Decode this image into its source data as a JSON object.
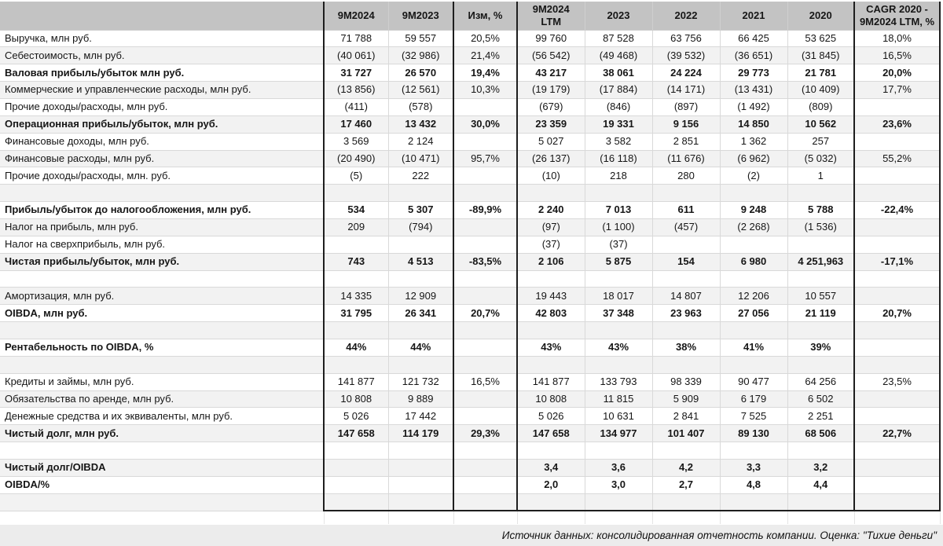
{
  "table": {
    "columns": [
      "",
      "9M2024",
      "9M2023",
      "Изм, %",
      "9M2024 LTM",
      "2023",
      "2022",
      "2021",
      "2020",
      "CAGR 2020 - 9M2024 LTM, %"
    ],
    "rows": [
      {
        "label": "Выручка, млн руб.",
        "bold": false,
        "cells": [
          "71 788",
          "59 557",
          "20,5%",
          "99 760",
          "87 528",
          "63 756",
          "66 425",
          "53 625",
          "18,0%"
        ]
      },
      {
        "label": "Себестоимость, млн руб.",
        "bold": false,
        "cells": [
          "(40 061)",
          "(32 986)",
          "21,4%",
          "(56 542)",
          "(49 468)",
          "(39 532)",
          "(36 651)",
          "(31 845)",
          "16,5%"
        ]
      },
      {
        "label": "Валовая прибыль/убыток млн руб.",
        "bold": true,
        "cells": [
          "31 727",
          "26 570",
          "19,4%",
          "43 217",
          "38 061",
          "24 224",
          "29 773",
          "21 781",
          "20,0%"
        ]
      },
      {
        "label": "Коммерческие и управленческие расходы, млн руб.",
        "bold": false,
        "cells": [
          "(13 856)",
          "(12 561)",
          "10,3%",
          "(19 179)",
          "(17 884)",
          "(14 171)",
          "(13 431)",
          "(10 409)",
          "17,7%"
        ]
      },
      {
        "label": "Прочие доходы/расходы, млн руб.",
        "bold": false,
        "cells": [
          "(411)",
          "(578)",
          "",
          "(679)",
          "(846)",
          "(897)",
          "(1 492)",
          "(809)",
          ""
        ]
      },
      {
        "label": "Операционная прибыль/убыток, млн руб.",
        "bold": true,
        "cells": [
          "17 460",
          "13 432",
          "30,0%",
          "23 359",
          "19 331",
          "9 156",
          "14 850",
          "10 562",
          "23,6%"
        ]
      },
      {
        "label": "Финансовые доходы, млн руб.",
        "bold": false,
        "cells": [
          "3 569",
          "2 124",
          "",
          "5 027",
          "3 582",
          "2 851",
          "1 362",
          "257",
          ""
        ]
      },
      {
        "label": "Финансовые расходы, млн руб.",
        "bold": false,
        "cells": [
          "(20 490)",
          "(10 471)",
          "95,7%",
          "(26 137)",
          "(16 118)",
          "(11 676)",
          "(6 962)",
          "(5 032)",
          "55,2%"
        ]
      },
      {
        "label": "Прочие доходы/расходы, млн. руб.",
        "bold": false,
        "cells": [
          "(5)",
          "222",
          "",
          "(10)",
          "218",
          "280",
          "(2)",
          "1",
          ""
        ]
      },
      {
        "label": "",
        "bold": false,
        "cells": [
          "",
          "",
          "",
          "",
          "",
          "",
          "",
          "",
          ""
        ]
      },
      {
        "label": "Прибыль/убыток до налогообложения, млн руб.",
        "bold": true,
        "cells": [
          "534",
          "5 307",
          "-89,9%",
          "2 240",
          "7 013",
          "611",
          "9 248",
          "5 788",
          "-22,4%"
        ]
      },
      {
        "label": "Налог на прибыль, млн руб.",
        "bold": false,
        "cells": [
          "209",
          "(794)",
          "",
          "(97)",
          "(1 100)",
          "(457)",
          "(2 268)",
          "(1 536)",
          ""
        ]
      },
      {
        "label": "Налог на сверхприбыль, млн руб.",
        "bold": false,
        "cells": [
          "",
          "",
          "",
          "(37)",
          "(37)",
          "",
          "",
          "",
          ""
        ]
      },
      {
        "label": "Чистая прибыль/убыток, млн руб.",
        "bold": true,
        "cells": [
          "743",
          "4 513",
          "-83,5%",
          "2 106",
          "5 875",
          "154",
          "6 980",
          "4 251,963",
          "-17,1%"
        ]
      },
      {
        "label": "",
        "bold": false,
        "cells": [
          "",
          "",
          "",
          "",
          "",
          "",
          "",
          "",
          ""
        ]
      },
      {
        "label": "Амортизация, млн руб.",
        "bold": false,
        "cells": [
          "14 335",
          "12 909",
          "",
          "19 443",
          "18 017",
          "14 807",
          "12 206",
          "10 557",
          ""
        ]
      },
      {
        "label": "OIBDA, млн руб.",
        "bold": true,
        "cells": [
          "31 795",
          "26 341",
          "20,7%",
          "42 803",
          "37 348",
          "23 963",
          "27 056",
          "21 119",
          "20,7%"
        ]
      },
      {
        "label": "",
        "bold": false,
        "cells": [
          "",
          "",
          "",
          "",
          "",
          "",
          "",
          "",
          ""
        ]
      },
      {
        "label": "Рентабельность по OIBDA, %",
        "bold": true,
        "cells": [
          "44%",
          "44%",
          "",
          "43%",
          "43%",
          "38%",
          "41%",
          "39%",
          ""
        ]
      },
      {
        "label": "",
        "bold": false,
        "cells": [
          "",
          "",
          "",
          "",
          "",
          "",
          "",
          "",
          ""
        ]
      },
      {
        "label": "Кредиты и займы, млн руб.",
        "bold": false,
        "cells": [
          "141 877",
          "121 732",
          "16,5%",
          "141 877",
          "133 793",
          "98 339",
          "90 477",
          "64 256",
          "23,5%"
        ]
      },
      {
        "label": "Обязательства по аренде, млн руб.",
        "bold": false,
        "cells": [
          "10 808",
          "9 889",
          "",
          "10 808",
          "11 815",
          "5 909",
          "6 179",
          "6 502",
          ""
        ]
      },
      {
        "label": "Денежные средства и их эквиваленты, млн руб.",
        "bold": false,
        "cells": [
          "5 026",
          "17 442",
          "",
          "5 026",
          "10 631",
          "2 841",
          "7 525",
          "2 251",
          ""
        ]
      },
      {
        "label": "Чистый долг, млн руб.",
        "bold": true,
        "cells": [
          "147 658",
          "114 179",
          "29,3%",
          "147 658",
          "134 977",
          "101 407",
          "89 130",
          "68 506",
          "22,7%"
        ]
      },
      {
        "label": "",
        "bold": false,
        "cells": [
          "",
          "",
          "",
          "",
          "",
          "",
          "",
          "",
          ""
        ]
      },
      {
        "label": "Чистый долг/OIBDA",
        "bold": true,
        "cells": [
          "",
          "",
          "",
          "3,4",
          "3,6",
          "4,2",
          "3,3",
          "3,2",
          ""
        ]
      },
      {
        "label": "OIBDA/%",
        "bold": true,
        "cells": [
          "",
          "",
          "",
          "2,0",
          "3,0",
          "2,7",
          "4,8",
          "4,4",
          ""
        ]
      },
      {
        "label": "",
        "bold": false,
        "cells": [
          "",
          "",
          "",
          "",
          "",
          "",
          "",
          "",
          ""
        ]
      }
    ]
  },
  "footer": {
    "source_note": "Источник данных: консолидированная отчетность компании. Оценка: \"Тихие деньги\""
  },
  "colors": {
    "header_bg": "#c3c3c3",
    "row_alt_bg": "#f2f2f2",
    "row_bg": "#ffffff",
    "footer_bg": "#ececec",
    "grid_line": "#d9d9d9",
    "group_border": "#1e1e1e"
  }
}
